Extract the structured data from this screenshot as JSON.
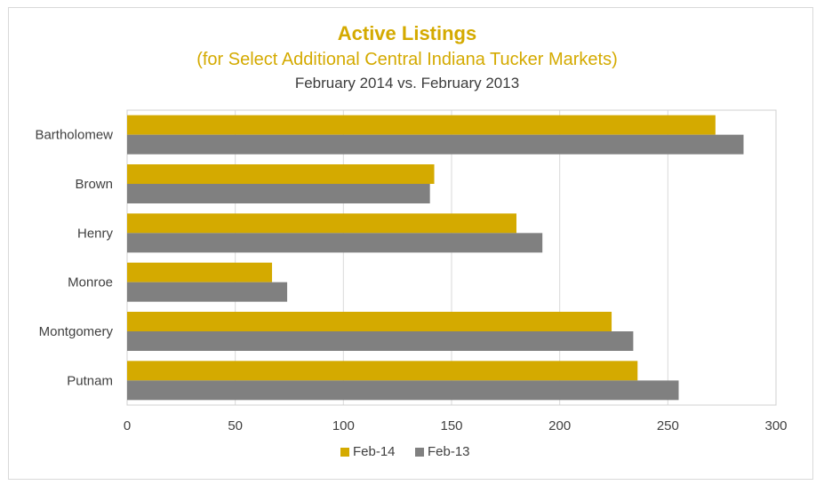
{
  "chart_data": {
    "type": "bar",
    "orientation": "horizontal",
    "title": "Active Listings",
    "subtitle": "(for Select Additional Central Indiana Tucker Markets)",
    "subtitle2": "February 2014 vs. February 2013",
    "categories": [
      "Bartholomew",
      "Brown",
      "Henry",
      "Monroe",
      "Montgomery",
      "Putnam"
    ],
    "series": [
      {
        "name": "Feb-14",
        "values": [
          272,
          142,
          180,
          67,
          224,
          236
        ],
        "color": "#d4aa00"
      },
      {
        "name": "Feb-13",
        "values": [
          285,
          140,
          192,
          74,
          234,
          255
        ],
        "color": "#808080"
      }
    ],
    "xlim": [
      0,
      300
    ],
    "xticks": [
      "0",
      "50",
      "100",
      "150",
      "200",
      "250",
      "300"
    ],
    "grid": true,
    "legend": "bottom"
  }
}
